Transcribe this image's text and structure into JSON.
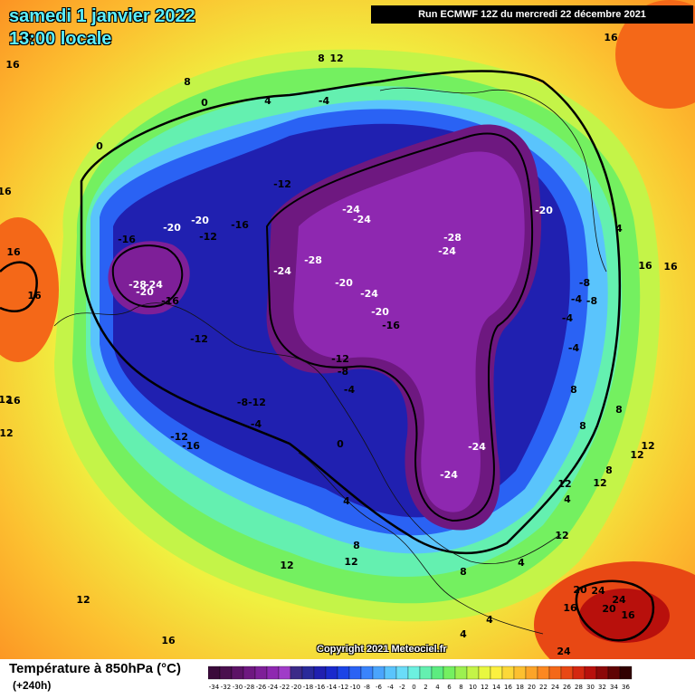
{
  "header": {
    "date": "samedi 1 janvier 2022",
    "time": "13:00 locale",
    "run": "Run ECMWF 12Z du mercredi 22 décembre 2021"
  },
  "footer": {
    "variable": "Température à 850hPa (°C)",
    "lead": "(+240h)",
    "copyright": "Copyright 2021 Meteociel.fr"
  },
  "legend": {
    "unit": "°C",
    "ticks": [
      "-34",
      "-32",
      "-30",
      "-28",
      "-26",
      "-24",
      "-22",
      "-20",
      "-18",
      "-16",
      "-14",
      "-12",
      "-10",
      "-8",
      "-6",
      "-4",
      "-2",
      "0",
      "2",
      "4",
      "6",
      "8",
      "10",
      "12",
      "14",
      "16",
      "18",
      "20",
      "22",
      "24",
      "26",
      "28",
      "30",
      "32",
      "34",
      "36"
    ],
    "colors": [
      "#3a0a3a",
      "#4a0f4e",
      "#5c1366",
      "#6e1880",
      "#7e1f98",
      "#8e28b0",
      "#a03cc8",
      "#3c2a88",
      "#2a2a9a",
      "#2020b0",
      "#1a2acc",
      "#1c44e6",
      "#2a62f4",
      "#3a84fc",
      "#4aa4fc",
      "#5ac4fc",
      "#6adcf8",
      "#6cf0e0",
      "#64f0b0",
      "#5cec80",
      "#74f060",
      "#9cf050",
      "#c4f448",
      "#e8f840",
      "#fcf040",
      "#fcd838",
      "#fcc030",
      "#fca428",
      "#fc8820",
      "#f46818",
      "#e84814",
      "#d42810",
      "#b8100c",
      "#8c0808",
      "#600404",
      "#300000"
    ]
  },
  "map_labels": [
    {
      "text": "16"
    },
    {
      "text": "8"
    },
    {
      "text": "12"
    },
    {
      "text": "16"
    },
    {
      "text": "16"
    },
    {
      "text": "16"
    },
    {
      "text": "8"
    },
    {
      "text": "0"
    },
    {
      "text": "4"
    },
    {
      "text": "-4"
    },
    {
      "text": "0"
    },
    {
      "text": "-12"
    },
    {
      "text": "-20"
    },
    {
      "text": "-16"
    },
    {
      "text": "-20"
    },
    {
      "text": "-12"
    },
    {
      "text": "-16"
    },
    {
      "text": "-28"
    },
    {
      "text": "-24"
    },
    {
      "text": "-20"
    },
    {
      "text": "-16"
    },
    {
      "text": "-12"
    },
    {
      "text": "-24"
    },
    {
      "text": "-24"
    },
    {
      "text": "-28"
    },
    {
      "text": "-24"
    },
    {
      "text": "-28"
    },
    {
      "text": "-24"
    },
    {
      "text": "-20"
    },
    {
      "text": "-24"
    },
    {
      "text": "-20"
    },
    {
      "text": "-16"
    },
    {
      "text": "-20"
    },
    {
      "text": "-12"
    },
    {
      "text": "-8"
    },
    {
      "text": "-4"
    },
    {
      "text": "-8"
    },
    {
      "text": "-12"
    },
    {
      "text": "-4"
    },
    {
      "text": "-12"
    },
    {
      "text": "-16"
    },
    {
      "text": "0"
    },
    {
      "text": "-24"
    },
    {
      "text": "-24"
    },
    {
      "text": "-8"
    },
    {
      "text": "-4"
    },
    {
      "text": "-8"
    },
    {
      "text": "-4"
    },
    {
      "text": "-4"
    },
    {
      "text": "16"
    },
    {
      "text": "16"
    },
    {
      "text": "4"
    },
    {
      "text": "8"
    },
    {
      "text": "8"
    },
    {
      "text": "8"
    },
    {
      "text": "12"
    },
    {
      "text": "12"
    },
    {
      "text": "8"
    },
    {
      "text": "12"
    },
    {
      "text": "12"
    },
    {
      "text": "4"
    },
    {
      "text": "4"
    },
    {
      "text": "8"
    },
    {
      "text": "12"
    },
    {
      "text": "12"
    },
    {
      "text": "12"
    },
    {
      "text": "8"
    },
    {
      "text": "4"
    },
    {
      "text": "4"
    },
    {
      "text": "4"
    },
    {
      "text": "12"
    },
    {
      "text": "16"
    },
    {
      "text": "20"
    },
    {
      "text": "24"
    },
    {
      "text": "24"
    },
    {
      "text": "20"
    },
    {
      "text": "16"
    },
    {
      "text": "16"
    },
    {
      "text": "24"
    },
    {
      "text": "16"
    },
    {
      "text": "12"
    },
    {
      "text": "16"
    },
    {
      "text": "12"
    },
    {
      "text": "16"
    }
  ]
}
